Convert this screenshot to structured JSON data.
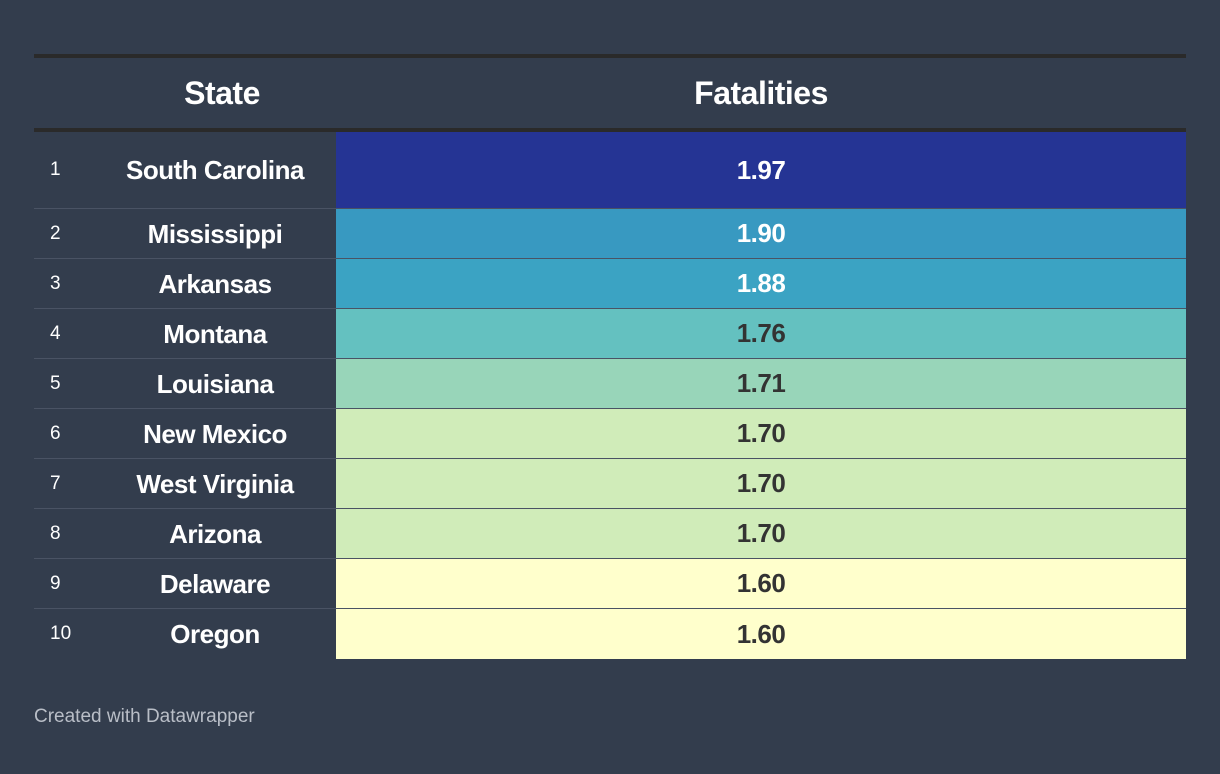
{
  "header": {
    "col_state": "State",
    "col_fatalities": "Fatalities"
  },
  "rows": [
    {
      "rank": "1",
      "state": "South Carolina",
      "value": "1.97",
      "color": "#253494",
      "text": "#ffffff"
    },
    {
      "rank": "2",
      "state": "Mississippi",
      "value": "1.90",
      "color": "#3899c1",
      "text": "#ffffff"
    },
    {
      "rank": "3",
      "state": "Arkansas",
      "value": "1.88",
      "color": "#3ba3c3",
      "text": "#ffffff"
    },
    {
      "rank": "4",
      "state": "Montana",
      "value": "1.76",
      "color": "#64c1c0",
      "text": "#333333"
    },
    {
      "rank": "5",
      "state": "Louisiana",
      "value": "1.71",
      "color": "#98d5b9",
      "text": "#333333"
    },
    {
      "rank": "6",
      "state": "New Mexico",
      "value": "1.70",
      "color": "#d0ecb9",
      "text": "#333333"
    },
    {
      "rank": "7",
      "state": "West Virginia",
      "value": "1.70",
      "color": "#d0ecb9",
      "text": "#333333"
    },
    {
      "rank": "8",
      "state": "Arizona",
      "value": "1.70",
      "color": "#d0ecb9",
      "text": "#333333"
    },
    {
      "rank": "9",
      "state": "Delaware",
      "value": "1.60",
      "color": "#ffffcc",
      "text": "#333333"
    },
    {
      "rank": "10",
      "state": "Oregon",
      "value": "1.60",
      "color": "#ffffcc",
      "text": "#333333"
    }
  ],
  "footer": "Created with Datawrapper"
}
